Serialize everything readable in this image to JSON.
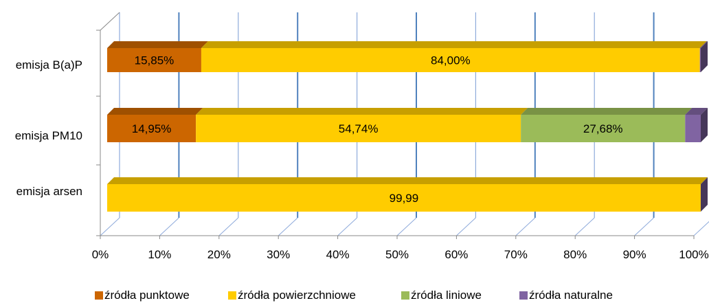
{
  "chart_data": {
    "type": "bar",
    "orientation": "horizontal",
    "stacked": "100%",
    "three_d": true,
    "categories": [
      "emisja B(a)P",
      "emisja PM10",
      "emisja arsen"
    ],
    "series": [
      {
        "name": "źródła punktowe",
        "color": "#cc6600",
        "values": [
          15.85,
          14.95,
          0
        ],
        "labels": [
          "15,85%",
          "14,95%",
          ""
        ]
      },
      {
        "name": "źródła powierzchniowe",
        "color": "#ffcc00",
        "values": [
          84.0,
          54.74,
          99.99
        ],
        "labels": [
          "84,00%",
          "54,74%",
          "99,99"
        ]
      },
      {
        "name": "źródła liniowe",
        "color": "#9bbb59",
        "values": [
          0,
          27.68,
          0
        ],
        "labels": [
          "",
          "27,68%",
          ""
        ]
      },
      {
        "name": "źródła naturalne",
        "color": "#8064a2",
        "values": [
          0.15,
          2.63,
          0.01
        ],
        "labels": [
          "",
          "",
          ""
        ]
      }
    ],
    "xlim": [
      0,
      100
    ],
    "xticks": [
      "0%",
      "10%",
      "20%",
      "30%",
      "40%",
      "50%",
      "60%",
      "70%",
      "80%",
      "90%",
      "100%"
    ],
    "grid": "vertical",
    "legend_position": "bottom"
  }
}
